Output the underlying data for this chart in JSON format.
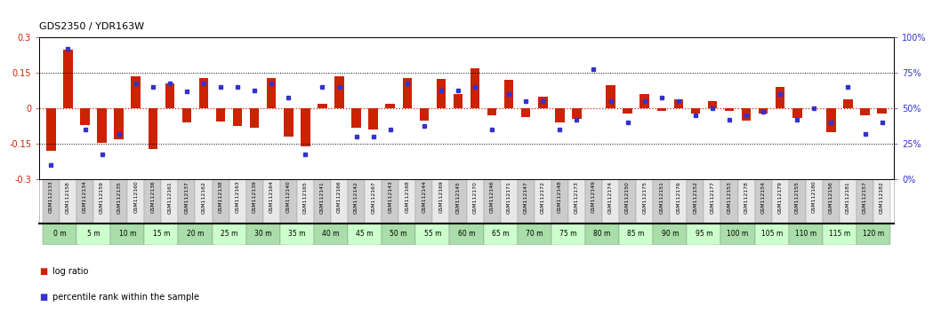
{
  "title": "GDS2350 / YDR163W",
  "sample_ids": [
    "GSM112133",
    "GSM112158",
    "GSM112134",
    "GSM112159",
    "GSM112135",
    "GSM112160",
    "GSM112136",
    "GSM112161",
    "GSM112137",
    "GSM112162",
    "GSM112138",
    "GSM112163",
    "GSM112139",
    "GSM112164",
    "GSM112140",
    "GSM112165",
    "GSM112141",
    "GSM112166",
    "GSM112142",
    "GSM112167",
    "GSM112143",
    "GSM112168",
    "GSM112144",
    "GSM112169",
    "GSM112145",
    "GSM112170",
    "GSM112146",
    "GSM112171",
    "GSM112147",
    "GSM112172",
    "GSM112148",
    "GSM112173",
    "GSM112149",
    "GSM112174",
    "GSM112150",
    "GSM112175",
    "GSM112151",
    "GSM112176",
    "GSM112152",
    "GSM112177",
    "GSM112153",
    "GSM112178",
    "GSM112154",
    "GSM112179",
    "GSM112155",
    "GSM112180",
    "GSM112156",
    "GSM112181",
    "GSM112157",
    "GSM112182"
  ],
  "time_labels": [
    "0 m",
    "5 m",
    "10 m",
    "15 m",
    "20 m",
    "25 m",
    "30 m",
    "35 m",
    "40 m",
    "45 m",
    "50 m",
    "55 m",
    "60 m",
    "65 m",
    "70 m",
    "75 m",
    "80 m",
    "85 m",
    "90 m",
    "95 m",
    "100 m",
    "105 m",
    "110 m",
    "115 m",
    "120 m"
  ],
  "log_ratio": [
    -0.18,
    0.25,
    -0.07,
    -0.145,
    -0.13,
    0.135,
    -0.17,
    0.105,
    -0.06,
    0.13,
    -0.055,
    -0.075,
    -0.08,
    0.13,
    -0.12,
    -0.16,
    0.02,
    0.135,
    -0.08,
    -0.09,
    0.02,
    0.13,
    -0.05,
    0.125,
    0.06,
    0.17,
    -0.03,
    0.12,
    -0.035,
    0.05,
    -0.06,
    -0.045,
    0.0,
    0.1,
    -0.02,
    0.06,
    -0.01,
    0.04,
    -0.02,
    0.03,
    -0.01,
    -0.05,
    -0.02,
    0.09,
    -0.04,
    0.0,
    -0.1,
    0.04,
    -0.03,
    -0.02
  ],
  "percentile_rank": [
    10,
    92,
    35,
    18,
    32,
    68,
    65,
    68,
    62,
    68,
    65,
    65,
    63,
    68,
    58,
    18,
    65,
    65,
    30,
    30,
    35,
    68,
    38,
    63,
    63,
    65,
    35,
    60,
    55,
    55,
    35,
    42,
    78,
    55,
    40,
    55,
    58,
    55,
    45,
    50,
    42,
    45,
    48,
    60,
    42,
    50,
    40,
    65,
    32,
    40
  ],
  "bar_color": "#cc2200",
  "dot_color": "#3333cc",
  "label_bg_odd": "#cccccc",
  "label_bg_even": "#e8e8e8",
  "time_bg_odd": "#aaddaa",
  "time_bg_even": "#ccffcc",
  "yticks_left": [
    -0.3,
    -0.15,
    0,
    0.15,
    0.3
  ],
  "yticks_right": [
    0,
    25,
    50,
    75,
    100
  ]
}
